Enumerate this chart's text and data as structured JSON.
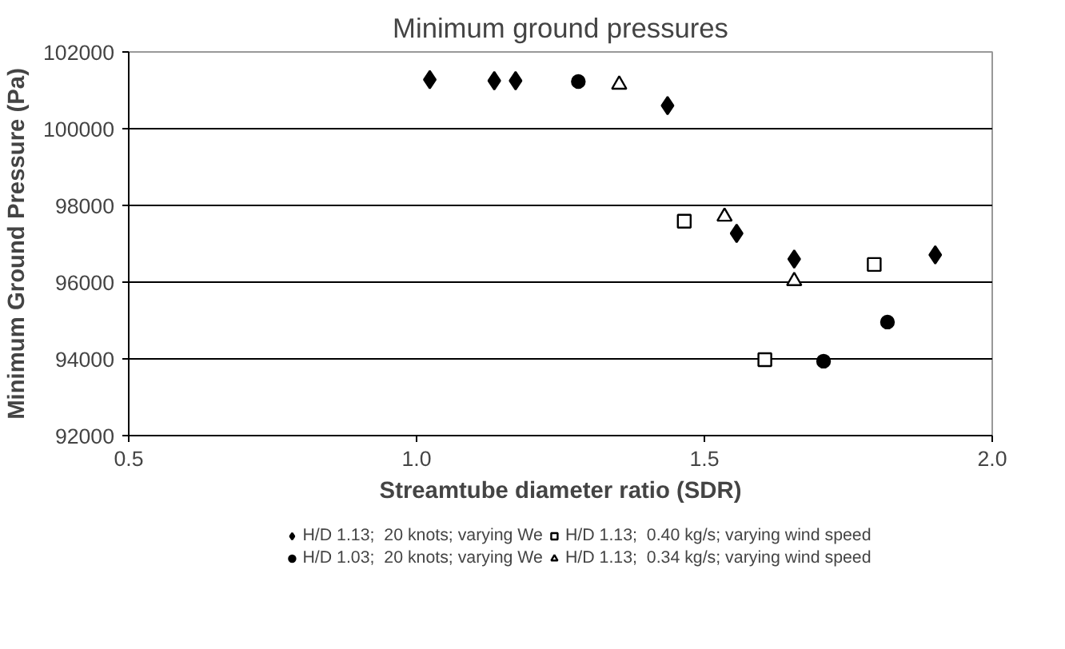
{
  "chart_data": {
    "type": "scatter",
    "title": "Minimum ground pressures",
    "xlabel": "Streamtube diameter ratio (SDR)",
    "ylabel": "Minimum Ground Pressure (Pa)",
    "xlim": [
      0.5,
      2.0
    ],
    "xticks": [
      {
        "value": 0.5,
        "label": "0.5"
      },
      {
        "value": 1.0,
        "label": "1.0"
      },
      {
        "value": 1.5,
        "label": "1.5"
      },
      {
        "value": 2.0,
        "label": "2.0"
      }
    ],
    "ylim": [
      92000,
      102000
    ],
    "yticks": [
      92000,
      94000,
      96000,
      98000,
      100000,
      102000
    ],
    "grid": "y",
    "legend": "bottom",
    "series": [
      {
        "name": "H/D 1.13;  20 knots; varying We",
        "color": "#000000",
        "marker": "diamond",
        "x": [
          1.023,
          1.135,
          1.172,
          1.436,
          1.556,
          1.656,
          1.795,
          1.901
        ],
        "values": [
          101280,
          101250,
          101250,
          100600,
          97270,
          96600,
          null,
          96710
        ]
      },
      {
        "name": "H/D 1.03;  20 knots; varying We",
        "color": "#000000",
        "marker": "circle",
        "x": [
          1.281,
          1.707,
          1.795,
          1.818
        ],
        "values": [
          101230,
          93940,
          null,
          94960
        ]
      },
      {
        "name": "H/D 1.13;  0.40 kg/s; varying wind speed",
        "color": "#000000",
        "marker": "square",
        "x": [
          1.465,
          1.605,
          1.795
        ],
        "values": [
          97590,
          93980,
          96460
        ]
      },
      {
        "name": "H/D 1.13;  0.34 kg/s; varying wind speed",
        "color": "#000000",
        "marker": "triangle",
        "x": [
          1.352,
          1.535,
          1.656
        ],
        "values": [
          101150,
          97710,
          96030
        ]
      }
    ]
  }
}
